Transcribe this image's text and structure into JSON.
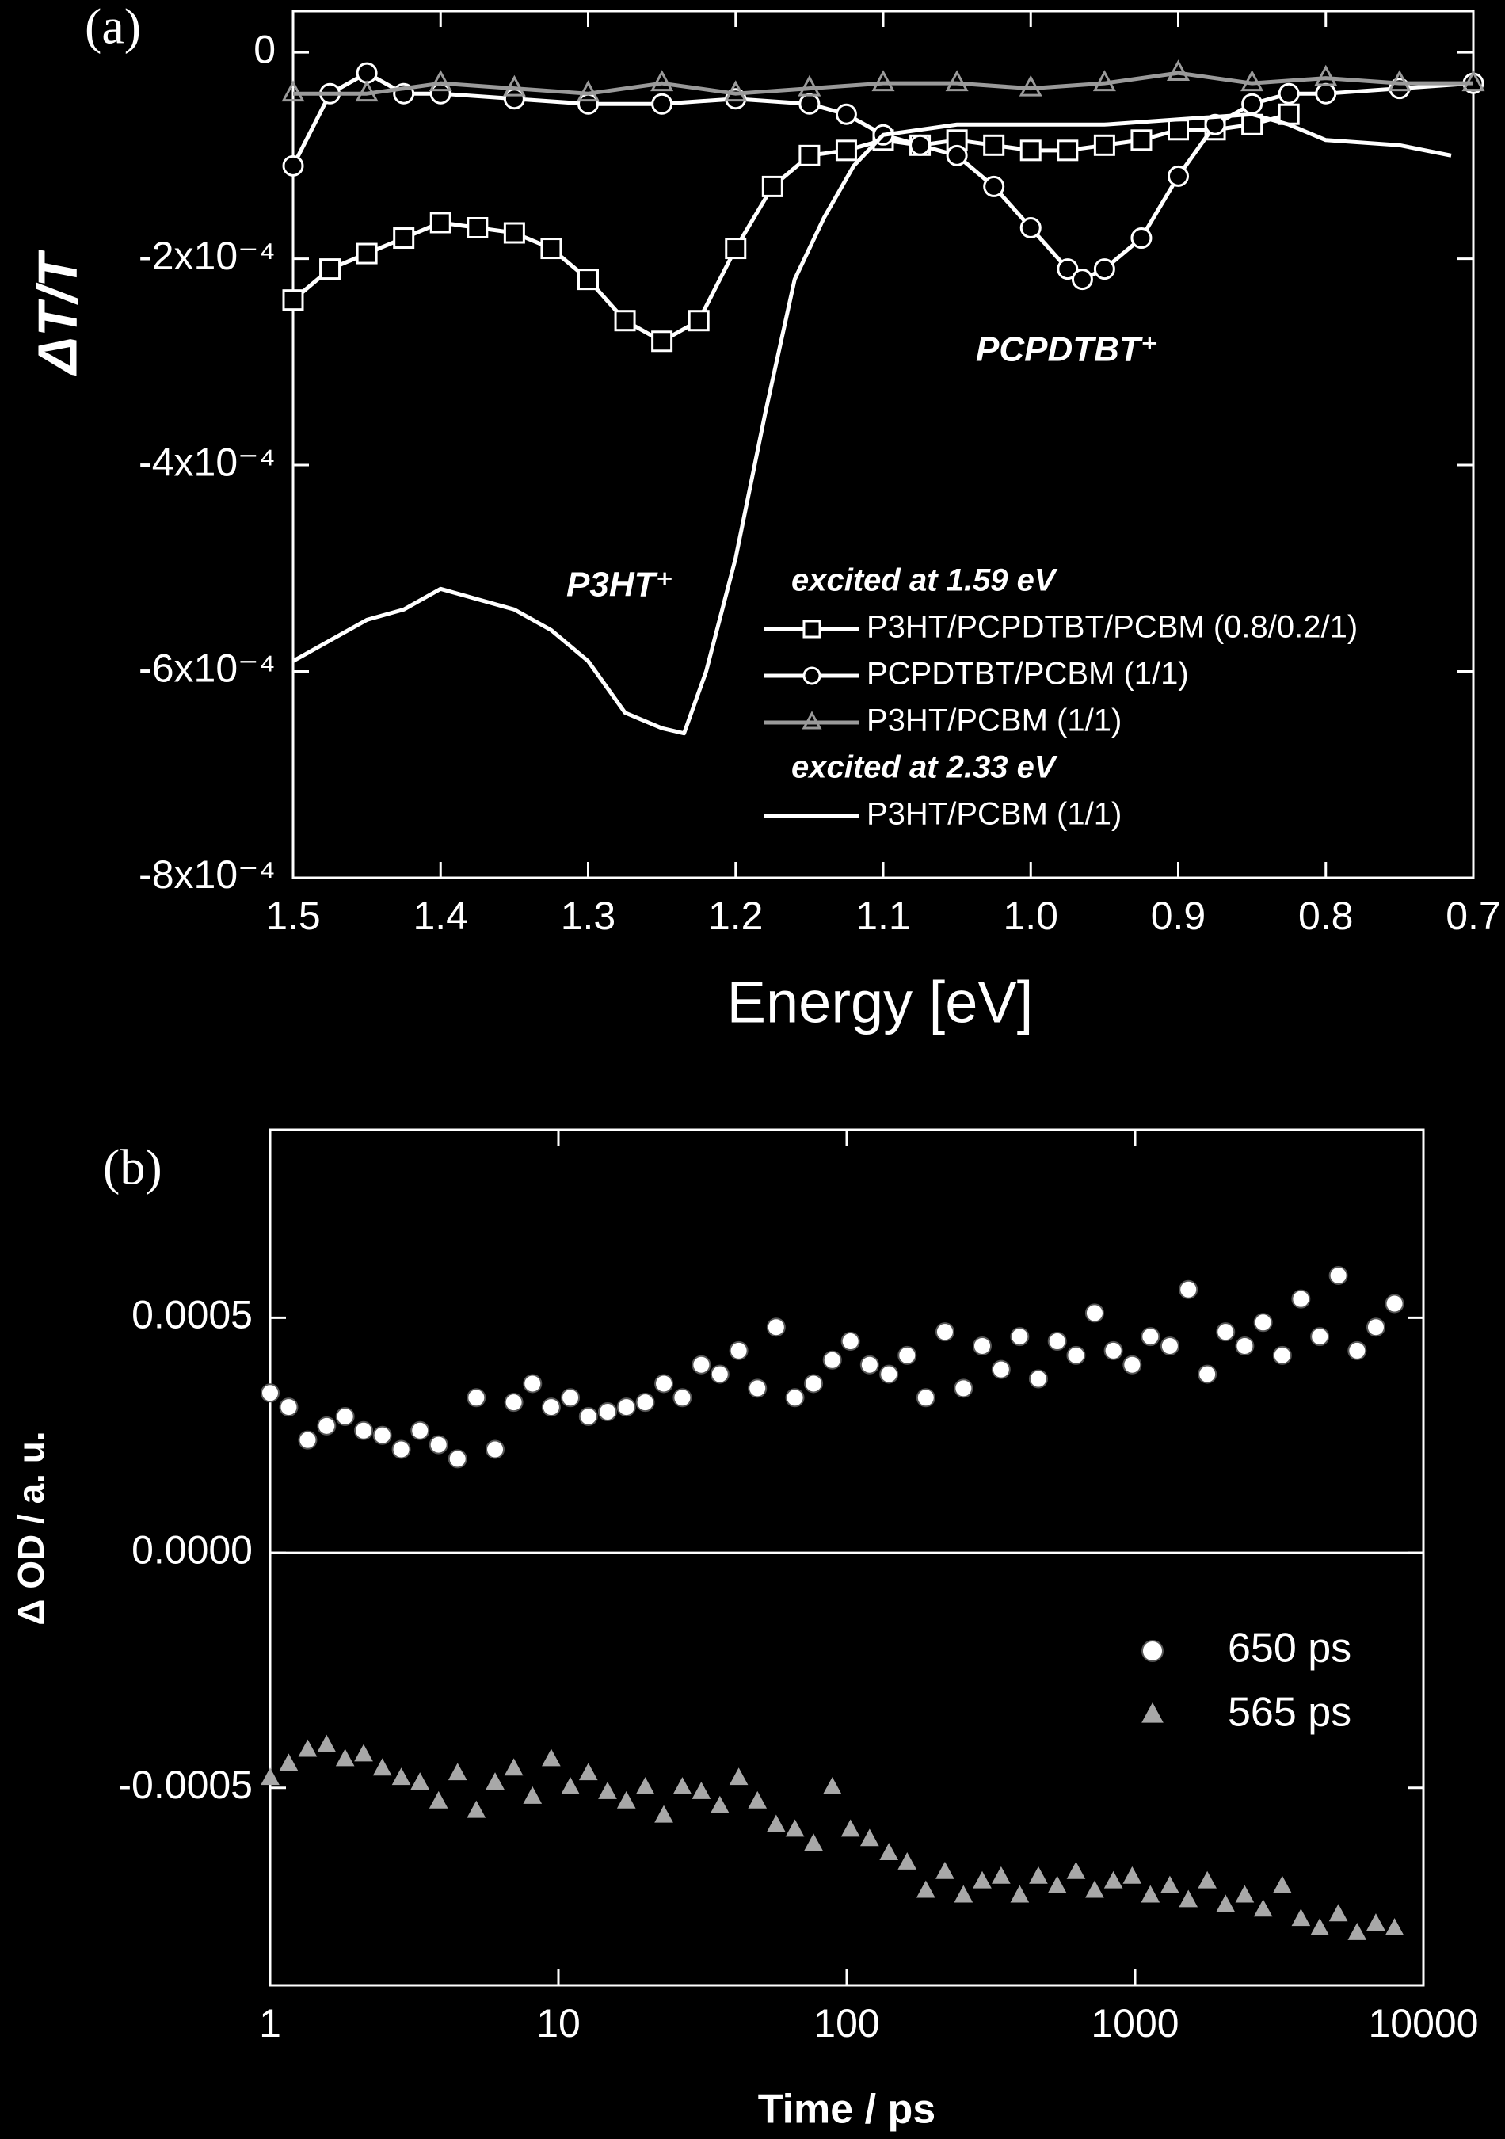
{
  "chart_data": [
    {
      "type": "line",
      "panel_label": "(a)",
      "x_label": "Energy [eV]",
      "y_label": "ΔT/T",
      "xlim": [
        1.5,
        0.7
      ],
      "ylim": [
        -0.0008,
        4e-05
      ],
      "xticks": [
        1.5,
        1.4,
        1.3,
        1.2,
        1.1,
        {
          "value": 1,
          "label": "1.0"
        },
        0.9,
        0.8,
        0.7
      ],
      "yticks": [
        0,
        {
          "value": -0.0002,
          "label": "-2x10⁻⁴"
        },
        {
          "value": -0.0004,
          "label": "-4x10⁻⁴"
        },
        {
          "value": -0.0006,
          "label": "-6x10⁻⁴"
        },
        {
          "value": -0.0008,
          "label": "-8x10⁻⁴"
        }
      ],
      "legend_headings": [
        "excited at 1.59 eV",
        "excited at 2.33 eV"
      ],
      "annotations": [
        "P3HT⁺",
        "PCPDTBT⁺"
      ],
      "series": [
        {
          "name": "P3HT/PCPDTBT/PCBM (0.8/0.2/1)",
          "color": "#ffffff",
          "marker": "square",
          "x": [
            1.5,
            1.475,
            1.45,
            1.425,
            1.4,
            1.375,
            1.35,
            1.325,
            1.3,
            1.275,
            1.25,
            1.225,
            1.2,
            1.175,
            1.15,
            1.125,
            1.1,
            1.075,
            1.05,
            1.025,
            1,
            0.975,
            0.95,
            0.925,
            0.9,
            0.875,
            0.85,
            0.825
          ],
          "values": [
            -0.00024,
            -0.00021,
            -0.000195,
            -0.00018,
            -0.000165,
            -0.00017,
            -0.000175,
            -0.00019,
            -0.00022,
            -0.00026,
            -0.00028,
            -0.00026,
            -0.00019,
            -0.00013,
            -0.0001,
            -9.5e-05,
            -8.5e-05,
            -9e-05,
            -8.5e-05,
            -9e-05,
            -9.5e-05,
            -9.5e-05,
            -9e-05,
            -8.5e-05,
            -7.5e-05,
            -7.5e-05,
            -7e-05,
            -6e-05
          ]
        },
        {
          "name": "PCPDTBT/PCBM (1/1)",
          "color": "#ffffff",
          "marker": "circle",
          "x": [
            1.5,
            1.475,
            1.45,
            1.425,
            1.4,
            1.35,
            1.3,
            1.25,
            1.2,
            1.15,
            1.125,
            1.1,
            1.075,
            1.05,
            1.025,
            1,
            0.975,
            0.965,
            0.95,
            0.925,
            0.9,
            0.875,
            0.85,
            0.825,
            0.8,
            0.75,
            0.7
          ],
          "values": [
            -0.00011,
            -4e-05,
            -2e-05,
            -4e-05,
            -4e-05,
            -4.5e-05,
            -5e-05,
            -5e-05,
            -4.5e-05,
            -5e-05,
            -6e-05,
            -8e-05,
            -9e-05,
            -0.0001,
            -0.00013,
            -0.00017,
            -0.00021,
            -0.00022,
            -0.00021,
            -0.00018,
            -0.00012,
            -7e-05,
            -5e-05,
            -4e-05,
            -4e-05,
            -3.5e-05,
            -3e-05
          ]
        },
        {
          "name": "P3HT/PCBM (1/1)",
          "color": "#9a9a9a",
          "marker": "triangle",
          "x": [
            1.5,
            1.45,
            1.4,
            1.35,
            1.3,
            1.25,
            1.2,
            1.15,
            1.1,
            1.05,
            1,
            0.95,
            0.9,
            0.85,
            0.8,
            0.75,
            0.7
          ],
          "values": [
            -4e-05,
            -4e-05,
            -3e-05,
            -3.5e-05,
            -4e-05,
            -3e-05,
            -4e-05,
            -3.5e-05,
            -3e-05,
            -3e-05,
            -3.5e-05,
            -3e-05,
            -2e-05,
            -3e-05,
            -2.5e-05,
            -3e-05,
            -3e-05
          ]
        },
        {
          "name": "P3HT/PCBM (1/1)",
          "color": "#ffffff",
          "x": [
            1.5,
            1.475,
            1.45,
            1.425,
            1.4,
            1.375,
            1.35,
            1.325,
            1.3,
            1.275,
            1.25,
            1.235,
            1.22,
            1.2,
            1.18,
            1.16,
            1.14,
            1.12,
            1.1,
            1.05,
            1,
            0.95,
            0.9,
            0.85,
            0.825,
            0.8,
            0.75,
            0.715
          ],
          "values": [
            -0.00059,
            -0.00057,
            -0.00055,
            -0.00054,
            -0.00052,
            -0.00053,
            -0.00054,
            -0.00056,
            -0.00059,
            -0.00064,
            -0.000655,
            -0.00066,
            -0.0006,
            -0.00049,
            -0.00035,
            -0.00022,
            -0.00016,
            -0.00011,
            -8e-05,
            -7e-05,
            -7e-05,
            -7e-05,
            -6.5e-05,
            -6e-05,
            -7e-05,
            -8.5e-05,
            -9e-05,
            -0.0001
          ]
        }
      ]
    },
    {
      "type": "scatter",
      "panel_label": "(b)",
      "x_label": "Time / ps",
      "y_label": "Δ OD / a. u.",
      "xscale": "log",
      "xlim": [
        1,
        10000
      ],
      "ylim": [
        -0.00092,
        0.0009
      ],
      "xticks": [
        1,
        10,
        100,
        1000,
        10000
      ],
      "yticks": [
        0.0005,
        {
          "value": 0,
          "label": "0.0000"
        },
        -0.0005
      ],
      "zero_line": true,
      "x": [
        1,
        1.16,
        1.35,
        1.57,
        1.82,
        2.11,
        2.45,
        2.85,
        3.31,
        3.84,
        4.47,
        5.19,
        6.03,
        7,
        8.13,
        9.44,
        11,
        12.7,
        14.8,
        17.2,
        20,
        23.2,
        26.9,
        31.3,
        36.3,
        42.2,
        49,
        56.9,
        66.1,
        76.7,
        89.1,
        103,
        120,
        140,
        162,
        188,
        219,
        254,
        295,
        343,
        398,
        462,
        537,
        624,
        724,
        841,
        977,
        1130,
        1320,
        1530,
        1780,
        2060,
        2400,
        2780,
        3240,
        3760,
        4370,
        5070,
        5890,
        6840,
        7940
      ],
      "series": [
        {
          "name": "650 ps",
          "color": "#ffffff",
          "marker": "circle",
          "values": [
            0.00034,
            0.00031,
            0.00024,
            0.00027,
            0.00029,
            0.00026,
            0.00025,
            0.00022,
            0.00026,
            0.00023,
            0.0002,
            0.00033,
            0.00022,
            0.00032,
            0.00036,
            0.00031,
            0.00033,
            0.00029,
            0.0003,
            0.00031,
            0.00032,
            0.00036,
            0.00033,
            0.0004,
            0.00038,
            0.00043,
            0.00035,
            0.00048,
            0.00033,
            0.00036,
            0.00041,
            0.00045,
            0.0004,
            0.00038,
            0.00042,
            0.00033,
            0.00047,
            0.00035,
            0.00044,
            0.00039,
            0.00046,
            0.00037,
            0.00045,
            0.00042,
            0.00051,
            0.00043,
            0.0004,
            0.00046,
            0.00044,
            0.00056,
            0.00038,
            0.00047,
            0.00044,
            0.00049,
            0.00042,
            0.00054,
            0.00046,
            0.00059,
            0.00043,
            0.00048,
            0.00053
          ]
        },
        {
          "name": "565 ps",
          "color": "#a8a8a8",
          "marker": "triangle",
          "values": [
            -0.00048,
            -0.00045,
            -0.00042,
            -0.00041,
            -0.00044,
            -0.00043,
            -0.00046,
            -0.00048,
            -0.00049,
            -0.00053,
            -0.00047,
            -0.00055,
            -0.00049,
            -0.00046,
            -0.00052,
            -0.00044,
            -0.0005,
            -0.00047,
            -0.00051,
            -0.00053,
            -0.0005,
            -0.00056,
            -0.0005,
            -0.00051,
            -0.00054,
            -0.00048,
            -0.00053,
            -0.00058,
            -0.00059,
            -0.00062,
            -0.0005,
            -0.00059,
            -0.00061,
            -0.00064,
            -0.00066,
            -0.00072,
            -0.00068,
            -0.00073,
            -0.0007,
            -0.00069,
            -0.00073,
            -0.00069,
            -0.00071,
            -0.00068,
            -0.00072,
            -0.0007,
            -0.00069,
            -0.00073,
            -0.00071,
            -0.00074,
            -0.0007,
            -0.00075,
            -0.00073,
            -0.00076,
            -0.00071,
            -0.00078,
            -0.0008,
            -0.00077,
            -0.00081,
            -0.00079,
            -0.0008
          ]
        }
      ]
    }
  ]
}
